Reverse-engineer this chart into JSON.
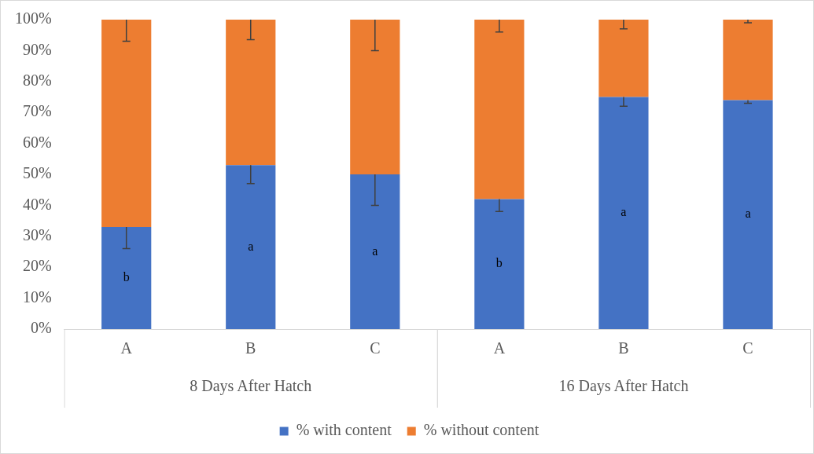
{
  "chart_data": {
    "type": "bar",
    "stacked": true,
    "categories": [
      "A",
      "B",
      "C",
      "A",
      "B",
      "C"
    ],
    "annotations": [
      "8 Days After Hatch",
      "16 Days After Hatch"
    ],
    "series": [
      {
        "name": "% with content",
        "color": "#4472c4",
        "values": [
          33,
          53,
          50,
          42,
          75,
          74
        ],
        "errors": [
          [
            26,
            33
          ],
          [
            47,
            53
          ],
          [
            40,
            50
          ],
          [
            38,
            42
          ],
          [
            72,
            75
          ],
          [
            73,
            74
          ]
        ],
        "value_labels": [
          "b",
          "a",
          "a",
          "b",
          "a",
          "a"
        ]
      },
      {
        "name": "% without content",
        "color": "#ed7d31",
        "values": [
          67,
          47,
          50,
          58,
          25,
          26
        ],
        "errors": [
          [
            93,
            100
          ],
          [
            93.5,
            100
          ],
          [
            90,
            100
          ],
          [
            96,
            100
          ],
          [
            97,
            100
          ],
          [
            99,
            100
          ]
        ]
      }
    ],
    "ylim": [
      0,
      100
    ],
    "yticks": [
      {
        "value": 0,
        "label": "0%"
      },
      {
        "value": 10,
        "label": "10%"
      },
      {
        "value": 20,
        "label": "20%"
      },
      {
        "value": 30,
        "label": "30%"
      },
      {
        "value": 40,
        "label": "40%"
      },
      {
        "value": 50,
        "label": "50%"
      },
      {
        "value": 60,
        "label": "60%"
      },
      {
        "value": 70,
        "label": "70%"
      },
      {
        "value": 80,
        "label": "80%"
      },
      {
        "value": 90,
        "label": "90%"
      },
      {
        "value": 100,
        "label": "100%"
      }
    ],
    "grid": false,
    "legend": "bottom"
  }
}
